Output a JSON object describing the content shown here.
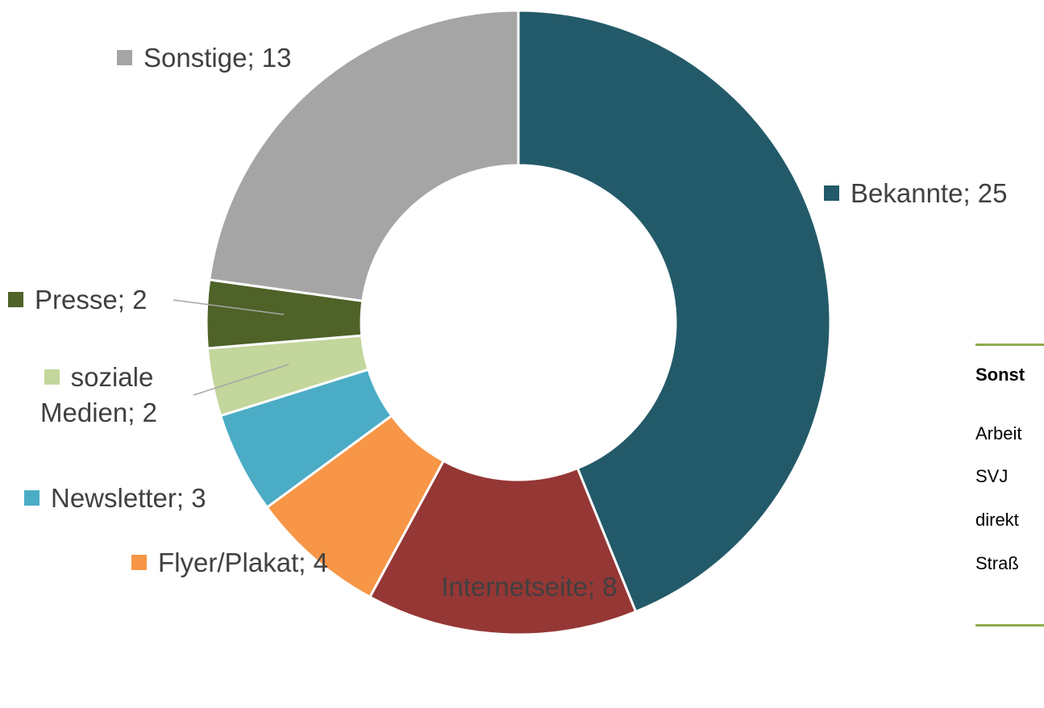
{
  "chart_data": {
    "type": "donut",
    "categories": [
      "Bekannte",
      "Internetseite",
      "Flyer/Plakat",
      "Newsletter",
      "soziale Medien",
      "Presse",
      "Sonstige"
    ],
    "values": [
      25,
      8,
      4,
      3,
      2,
      2,
      13
    ],
    "colors": [
      "#235a69",
      "#953735",
      "#f79646",
      "#4bacc6",
      "#c3d69b",
      "#4f6228",
      "#a5a5a5"
    ],
    "label_separator": "; "
  },
  "side_table": {
    "header": "Sonst",
    "rows": [
      "Arbeit",
      "SVJ",
      "direkt",
      "Straß"
    ]
  }
}
